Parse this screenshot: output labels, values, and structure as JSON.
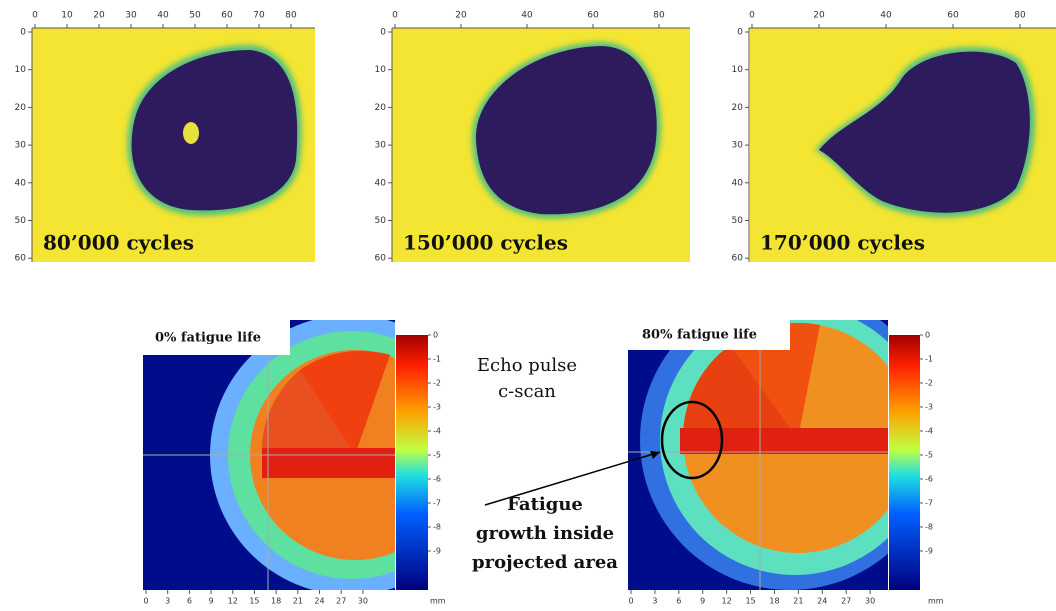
{
  "top_panels": [
    {
      "label": "80’000 cycles",
      "x_ticks": [
        0,
        10,
        20,
        30,
        40,
        50,
        60,
        70,
        80
      ],
      "y_ticks": [
        0,
        10,
        20,
        30,
        40,
        50,
        60
      ]
    },
    {
      "label": "150’000 cycles",
      "x_ticks": [
        0,
        20,
        40,
        60,
        80
      ],
      "y_ticks": [
        0,
        10,
        20,
        30,
        40,
        50,
        60
      ]
    },
    {
      "label": "170’000 cycles",
      "x_ticks": [
        0,
        20,
        40,
        60,
        80
      ],
      "y_ticks": [
        0,
        10,
        20,
        30,
        40,
        50,
        60
      ]
    }
  ],
  "bottom_panels": [
    {
      "label": "0% fatigue life",
      "colorbar_ticks": [
        0,
        -1,
        -2,
        -3,
        -4,
        -5,
        -6,
        -7,
        -8,
        -9
      ],
      "x_ticks": [
        0,
        3,
        6,
        9,
        12,
        15,
        18,
        21,
        24,
        27,
        30
      ],
      "x_unit": "mm"
    },
    {
      "label": "80% fatigue life",
      "colorbar_ticks": [
        0,
        -1,
        -2,
        -3,
        -4,
        -5,
        -6,
        -7,
        -8,
        -9
      ],
      "x_ticks": [
        0,
        3,
        6,
        9,
        12,
        15,
        18,
        21,
        24,
        27,
        30
      ],
      "x_unit": "mm"
    }
  ],
  "center_title": [
    "Echo pulse",
    "c-scan"
  ],
  "callout": [
    "Fatigue",
    "growth inside",
    "projected area"
  ]
}
